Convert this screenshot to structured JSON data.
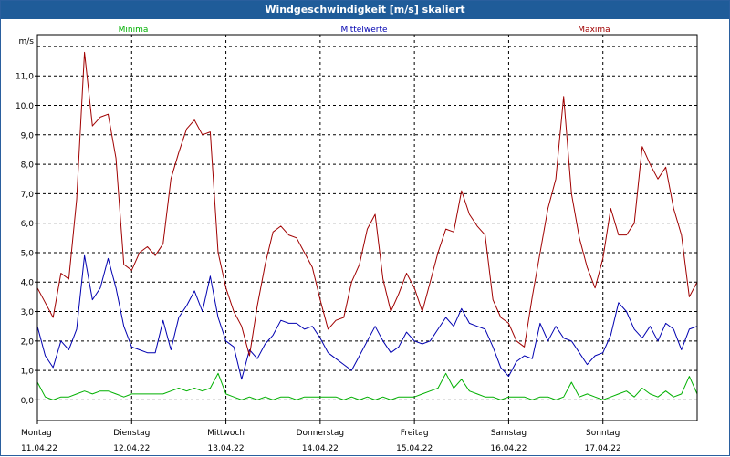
{
  "window": {
    "title": "Windgeschwindigkeit [m/s] skaliert"
  },
  "colors": {
    "titlebar": "#1f5c99",
    "minima": "#00b000",
    "mittelwerte": "#0000b0",
    "maxima": "#a00000",
    "grid": "#000000"
  },
  "chart_data": {
    "type": "line",
    "title": "Windgeschwindigkeit [m/s] skaliert",
    "ylabel": "m/s",
    "xlabel": "",
    "ylim": [
      -0.7,
      12.4
    ],
    "xlim": [
      0,
      168
    ],
    "grid": true,
    "legend_position": "top",
    "y_ticks": [
      "0,0",
      "1,0",
      "2,0",
      "3,0",
      "4,0",
      "5,0",
      "6,0",
      "7,0",
      "8,0",
      "9,0",
      "10,0",
      "11,0"
    ],
    "x_ticks": [
      {
        "day": "Montag",
        "date": "11.04.22"
      },
      {
        "day": "Dienstag",
        "date": "12.04.22"
      },
      {
        "day": "Mittwoch",
        "date": "13.04.22"
      },
      {
        "day": "Donnerstag",
        "date": "14.04.22"
      },
      {
        "day": "Freitag",
        "date": "15.04.22"
      },
      {
        "day": "Samstag",
        "date": "16.04.22"
      },
      {
        "day": "Sonntag",
        "date": "17.04.22"
      }
    ],
    "series": [
      {
        "name": "Minima",
        "color": "#00b000",
        "x": [
          0,
          2,
          4,
          6,
          8,
          10,
          12,
          14,
          16,
          18,
          20,
          22,
          24,
          26,
          28,
          30,
          32,
          34,
          36,
          38,
          40,
          42,
          44,
          46,
          48,
          50,
          52,
          54,
          56,
          58,
          60,
          62,
          64,
          66,
          68,
          70,
          72,
          74,
          76,
          78,
          80,
          82,
          84,
          86,
          88,
          90,
          92,
          94,
          96,
          98,
          100,
          102,
          104,
          106,
          108,
          110,
          112,
          114,
          116,
          118,
          120,
          122,
          124,
          126,
          128,
          130,
          132,
          134,
          136,
          138,
          140,
          142,
          144,
          146,
          148,
          150,
          152,
          154,
          156,
          158,
          160,
          162,
          164,
          166,
          168
        ],
        "values": [
          0.6,
          0.1,
          0.0,
          0.1,
          0.1,
          0.2,
          0.3,
          0.2,
          0.3,
          0.3,
          0.2,
          0.1,
          0.2,
          0.2,
          0.2,
          0.2,
          0.2,
          0.3,
          0.4,
          0.3,
          0.4,
          0.3,
          0.4,
          0.9,
          0.2,
          0.1,
          0.0,
          0.1,
          0.0,
          0.1,
          0.0,
          0.1,
          0.1,
          0.0,
          0.1,
          0.1,
          0.1,
          0.1,
          0.1,
          0.0,
          0.1,
          0.0,
          0.1,
          0.0,
          0.1,
          0.0,
          0.1,
          0.1,
          0.1,
          0.2,
          0.3,
          0.4,
          0.9,
          0.4,
          0.7,
          0.3,
          0.2,
          0.1,
          0.1,
          0.0,
          0.1,
          0.1,
          0.1,
          0.0,
          0.1,
          0.1,
          0.0,
          0.1,
          0.6,
          0.1,
          0.2,
          0.1,
          0.0,
          0.1,
          0.2,
          0.3,
          0.1,
          0.4,
          0.2,
          0.1,
          0.3,
          0.1,
          0.2,
          0.8,
          0.2
        ]
      },
      {
        "name": "Mittelwerte",
        "color": "#0000b0",
        "x": [
          0,
          2,
          4,
          6,
          8,
          10,
          12,
          14,
          16,
          18,
          20,
          22,
          24,
          26,
          28,
          30,
          32,
          34,
          36,
          38,
          40,
          42,
          44,
          46,
          48,
          50,
          52,
          54,
          56,
          58,
          60,
          62,
          64,
          66,
          68,
          70,
          72,
          74,
          76,
          78,
          80,
          82,
          84,
          86,
          88,
          90,
          92,
          94,
          96,
          98,
          100,
          102,
          104,
          106,
          108,
          110,
          112,
          114,
          116,
          118,
          120,
          122,
          124,
          126,
          128,
          130,
          132,
          134,
          136,
          138,
          140,
          142,
          144,
          146,
          148,
          150,
          152,
          154,
          156,
          158,
          160,
          162,
          164,
          166,
          168
        ],
        "values": [
          2.5,
          1.5,
          1.1,
          2.0,
          1.7,
          2.4,
          4.9,
          3.4,
          3.8,
          4.8,
          3.8,
          2.5,
          1.8,
          1.7,
          1.6,
          1.6,
          2.7,
          1.7,
          2.8,
          3.2,
          3.7,
          3.0,
          4.2,
          2.8,
          2.0,
          1.8,
          0.7,
          1.7,
          1.4,
          1.9,
          2.2,
          2.7,
          2.6,
          2.6,
          2.4,
          2.5,
          2.1,
          1.6,
          1.4,
          1.2,
          1.0,
          1.5,
          2.0,
          2.5,
          2.0,
          1.6,
          1.8,
          2.3,
          2.0,
          1.9,
          2.0,
          2.4,
          2.8,
          2.5,
          3.1,
          2.6,
          2.5,
          2.4,
          1.8,
          1.1,
          0.8,
          1.3,
          1.5,
          1.4,
          2.6,
          2.0,
          2.5,
          2.1,
          2.0,
          1.6,
          1.2,
          1.5,
          1.6,
          2.2,
          3.3,
          3.0,
          2.4,
          2.1,
          2.5,
          2.0,
          2.6,
          2.4,
          1.7,
          2.4,
          2.5
        ]
      },
      {
        "name": "Maxima",
        "color": "#a00000",
        "x": [
          0,
          2,
          4,
          6,
          8,
          10,
          12,
          14,
          16,
          18,
          20,
          22,
          24,
          26,
          28,
          30,
          32,
          34,
          36,
          38,
          40,
          42,
          44,
          46,
          48,
          50,
          52,
          54,
          56,
          58,
          60,
          62,
          64,
          66,
          68,
          70,
          72,
          74,
          76,
          78,
          80,
          82,
          84,
          86,
          88,
          90,
          92,
          94,
          96,
          98,
          100,
          102,
          104,
          106,
          108,
          110,
          112,
          114,
          116,
          118,
          120,
          122,
          124,
          126,
          128,
          130,
          132,
          134,
          136,
          138,
          140,
          142,
          144,
          146,
          148,
          150,
          152,
          154,
          156,
          158,
          160,
          162,
          164,
          166,
          168
        ],
        "values": [
          3.8,
          3.3,
          2.8,
          4.3,
          4.1,
          6.8,
          11.8,
          9.3,
          9.6,
          9.7,
          8.2,
          4.6,
          4.4,
          5.0,
          5.2,
          4.9,
          5.3,
          7.5,
          8.4,
          9.2,
          9.5,
          9.0,
          9.1,
          5.0,
          3.8,
          3.0,
          2.5,
          1.5,
          3.2,
          4.6,
          5.7,
          5.9,
          5.6,
          5.5,
          5.0,
          4.5,
          3.4,
          2.4,
          2.7,
          2.8,
          4.0,
          4.6,
          5.8,
          6.3,
          4.1,
          3.0,
          3.6,
          4.3,
          3.8,
          3.0,
          4.0,
          5.0,
          5.8,
          5.7,
          7.1,
          6.3,
          5.9,
          5.6,
          3.4,
          2.8,
          2.6,
          2.0,
          1.8,
          3.5,
          5.0,
          6.5,
          7.5,
          10.3,
          7.0,
          5.5,
          4.5,
          3.8,
          4.8,
          6.5,
          5.6,
          5.6,
          6.0,
          8.6,
          8.0,
          7.5,
          7.9,
          6.5,
          5.6,
          3.5,
          4.0
        ]
      }
    ]
  }
}
